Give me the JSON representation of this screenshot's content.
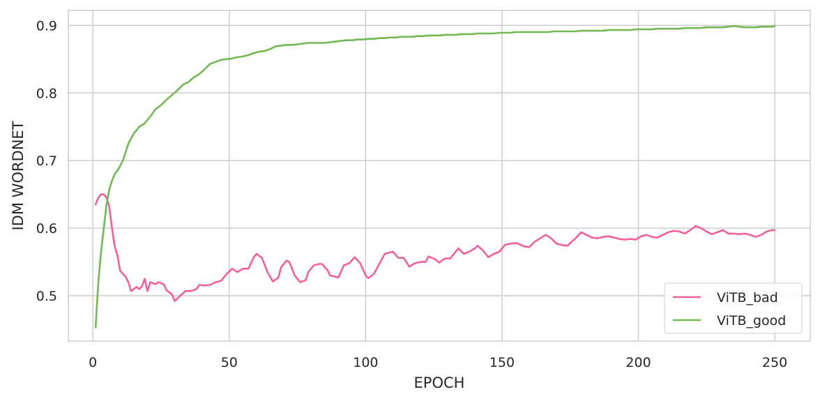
{
  "chart_data": {
    "type": "line",
    "title": "",
    "xlabel": "EPOCH",
    "ylabel": "IDM WORDNET",
    "xlim": [
      -9,
      263
    ],
    "ylim": [
      0.433,
      0.922
    ],
    "xticks": [
      0,
      50,
      100,
      150,
      200,
      250
    ],
    "yticks": [
      0.5,
      0.6,
      0.7,
      0.8,
      0.9
    ],
    "xtick_labels": [
      "0",
      "50",
      "100",
      "150",
      "200",
      "250"
    ],
    "ytick_labels": [
      "0.5",
      "0.6",
      "0.7",
      "0.8",
      "0.9"
    ],
    "grid": true,
    "legend_position": "bottom-right",
    "series": [
      {
        "name": "ViTB_bad",
        "color": "#f0609a",
        "points": [
          [
            1,
            0.635
          ],
          [
            2,
            0.645
          ],
          [
            3,
            0.65
          ],
          [
            4,
            0.65
          ],
          [
            5,
            0.645
          ],
          [
            6,
            0.632
          ],
          [
            7,
            0.6
          ],
          [
            8,
            0.573
          ],
          [
            9,
            0.56
          ],
          [
            10,
            0.537
          ],
          [
            12,
            0.528
          ],
          [
            13,
            0.52
          ],
          [
            14,
            0.507
          ],
          [
            16,
            0.513
          ],
          [
            17,
            0.51
          ],
          [
            18,
            0.514
          ],
          [
            19,
            0.525
          ],
          [
            20,
            0.507
          ],
          [
            21,
            0.52
          ],
          [
            23,
            0.517
          ],
          [
            24,
            0.52
          ],
          [
            26,
            0.517
          ],
          [
            27,
            0.508
          ],
          [
            29,
            0.502
          ],
          [
            30,
            0.492
          ],
          [
            32,
            0.5
          ],
          [
            34,
            0.507
          ],
          [
            36,
            0.507
          ],
          [
            38,
            0.51
          ],
          [
            39,
            0.516
          ],
          [
            41,
            0.515
          ],
          [
            43,
            0.516
          ],
          [
            45,
            0.52
          ],
          [
            47,
            0.522
          ],
          [
            49,
            0.532
          ],
          [
            51,
            0.54
          ],
          [
            53,
            0.535
          ],
          [
            55,
            0.54
          ],
          [
            57,
            0.54
          ],
          [
            59,
            0.557
          ],
          [
            60,
            0.562
          ],
          [
            62,
            0.556
          ],
          [
            64,
            0.535
          ],
          [
            66,
            0.521
          ],
          [
            68,
            0.527
          ],
          [
            69,
            0.542
          ],
          [
            71,
            0.552
          ],
          [
            72,
            0.55
          ],
          [
            74,
            0.53
          ],
          [
            76,
            0.52
          ],
          [
            78,
            0.523
          ],
          [
            79,
            0.535
          ],
          [
            81,
            0.545
          ],
          [
            83,
            0.547
          ],
          [
            84,
            0.547
          ],
          [
            86,
            0.538
          ],
          [
            87,
            0.53
          ],
          [
            89,
            0.528
          ],
          [
            90,
            0.527
          ],
          [
            92,
            0.545
          ],
          [
            94,
            0.548
          ],
          [
            96,
            0.557
          ],
          [
            98,
            0.548
          ],
          [
            100,
            0.53
          ],
          [
            101,
            0.526
          ],
          [
            103,
            0.532
          ],
          [
            105,
            0.547
          ],
          [
            107,
            0.562
          ],
          [
            108,
            0.563
          ],
          [
            110,
            0.565
          ],
          [
            112,
            0.556
          ],
          [
            114,
            0.556
          ],
          [
            116,
            0.543
          ],
          [
            118,
            0.548
          ],
          [
            120,
            0.55
          ],
          [
            122,
            0.55
          ],
          [
            123,
            0.558
          ],
          [
            125,
            0.555
          ],
          [
            127,
            0.549
          ],
          [
            129,
            0.555
          ],
          [
            131,
            0.555
          ],
          [
            133,
            0.565
          ],
          [
            134,
            0.57
          ],
          [
            136,
            0.562
          ],
          [
            138,
            0.565
          ],
          [
            140,
            0.57
          ],
          [
            141,
            0.574
          ],
          [
            143,
            0.567
          ],
          [
            145,
            0.557
          ],
          [
            147,
            0.562
          ],
          [
            149,
            0.565
          ],
          [
            151,
            0.575
          ],
          [
            153,
            0.577
          ],
          [
            155,
            0.578
          ],
          [
            156,
            0.577
          ],
          [
            158,
            0.573
          ],
          [
            160,
            0.572
          ],
          [
            162,
            0.58
          ],
          [
            164,
            0.585
          ],
          [
            166,
            0.59
          ],
          [
            168,
            0.585
          ],
          [
            170,
            0.577
          ],
          [
            172,
            0.575
          ],
          [
            174,
            0.574
          ],
          [
            175,
            0.578
          ],
          [
            177,
            0.585
          ],
          [
            179,
            0.594
          ],
          [
            181,
            0.59
          ],
          [
            183,
            0.586
          ],
          [
            185,
            0.585
          ],
          [
            187,
            0.587
          ],
          [
            189,
            0.588
          ],
          [
            191,
            0.586
          ],
          [
            193,
            0.584
          ],
          [
            195,
            0.583
          ],
          [
            197,
            0.584
          ],
          [
            199,
            0.583
          ],
          [
            201,
            0.588
          ],
          [
            203,
            0.59
          ],
          [
            205,
            0.587
          ],
          [
            207,
            0.586
          ],
          [
            209,
            0.59
          ],
          [
            211,
            0.594
          ],
          [
            213,
            0.596
          ],
          [
            215,
            0.595
          ],
          [
            217,
            0.592
          ],
          [
            219,
            0.597
          ],
          [
            221,
            0.603
          ],
          [
            223,
            0.6
          ],
          [
            225,
            0.595
          ],
          [
            227,
            0.591
          ],
          [
            229,
            0.594
          ],
          [
            231,
            0.597
          ],
          [
            233,
            0.592
          ],
          [
            235,
            0.592
          ],
          [
            237,
            0.591
          ],
          [
            239,
            0.592
          ],
          [
            241,
            0.59
          ],
          [
            243,
            0.587
          ],
          [
            245,
            0.59
          ],
          [
            247,
            0.595
          ],
          [
            249,
            0.597
          ],
          [
            250,
            0.597
          ]
        ]
      },
      {
        "name": "ViTB_good",
        "color": "#72b855",
        "points": [
          [
            1,
            0.453
          ],
          [
            2,
            0.52
          ],
          [
            3,
            0.565
          ],
          [
            4,
            0.6
          ],
          [
            5,
            0.635
          ],
          [
            6,
            0.657
          ],
          [
            7,
            0.67
          ],
          [
            8,
            0.68
          ],
          [
            9,
            0.685
          ],
          [
            10,
            0.692
          ],
          [
            11,
            0.7
          ],
          [
            12,
            0.712
          ],
          [
            13,
            0.725
          ],
          [
            15,
            0.74
          ],
          [
            17,
            0.75
          ],
          [
            19,
            0.755
          ],
          [
            21,
            0.765
          ],
          [
            23,
            0.776
          ],
          [
            25,
            0.782
          ],
          [
            27,
            0.79
          ],
          [
            29,
            0.797
          ],
          [
            31,
            0.804
          ],
          [
            33,
            0.812
          ],
          [
            35,
            0.816
          ],
          [
            37,
            0.823
          ],
          [
            39,
            0.828
          ],
          [
            41,
            0.835
          ],
          [
            43,
            0.843
          ],
          [
            45,
            0.846
          ],
          [
            47,
            0.849
          ],
          [
            49,
            0.85
          ],
          [
            51,
            0.851
          ],
          [
            53,
            0.853
          ],
          [
            55,
            0.854
          ],
          [
            57,
            0.856
          ],
          [
            59,
            0.859
          ],
          [
            61,
            0.861
          ],
          [
            63,
            0.862
          ],
          [
            65,
            0.865
          ],
          [
            67,
            0.869
          ],
          [
            69,
            0.87
          ],
          [
            71,
            0.871
          ],
          [
            73,
            0.871
          ],
          [
            75,
            0.872
          ],
          [
            77,
            0.873
          ],
          [
            79,
            0.874
          ],
          [
            81,
            0.874
          ],
          [
            83,
            0.874
          ],
          [
            85,
            0.874
          ],
          [
            87,
            0.875
          ],
          [
            89,
            0.876
          ],
          [
            91,
            0.877
          ],
          [
            93,
            0.878
          ],
          [
            95,
            0.878
          ],
          [
            97,
            0.879
          ],
          [
            99,
            0.879
          ],
          [
            101,
            0.88
          ],
          [
            103,
            0.88
          ],
          [
            105,
            0.881
          ],
          [
            107,
            0.881
          ],
          [
            109,
            0.882
          ],
          [
            111,
            0.882
          ],
          [
            113,
            0.883
          ],
          [
            115,
            0.883
          ],
          [
            117,
            0.883
          ],
          [
            119,
            0.884
          ],
          [
            121,
            0.884
          ],
          [
            123,
            0.885
          ],
          [
            125,
            0.885
          ],
          [
            127,
            0.885
          ],
          [
            129,
            0.886
          ],
          [
            131,
            0.886
          ],
          [
            133,
            0.886
          ],
          [
            135,
            0.887
          ],
          [
            137,
            0.887
          ],
          [
            139,
            0.887
          ],
          [
            141,
            0.888
          ],
          [
            143,
            0.888
          ],
          [
            145,
            0.888
          ],
          [
            147,
            0.888
          ],
          [
            149,
            0.889
          ],
          [
            151,
            0.889
          ],
          [
            153,
            0.889
          ],
          [
            155,
            0.89
          ],
          [
            157,
            0.89
          ],
          [
            159,
            0.89
          ],
          [
            161,
            0.89
          ],
          [
            163,
            0.89
          ],
          [
            165,
            0.89
          ],
          [
            167,
            0.89
          ],
          [
            169,
            0.891
          ],
          [
            171,
            0.891
          ],
          [
            173,
            0.891
          ],
          [
            175,
            0.891
          ],
          [
            177,
            0.891
          ],
          [
            179,
            0.892
          ],
          [
            181,
            0.892
          ],
          [
            183,
            0.892
          ],
          [
            185,
            0.892
          ],
          [
            187,
            0.892
          ],
          [
            189,
            0.893
          ],
          [
            191,
            0.893
          ],
          [
            193,
            0.893
          ],
          [
            195,
            0.893
          ],
          [
            197,
            0.893
          ],
          [
            199,
            0.894
          ],
          [
            201,
            0.894
          ],
          [
            203,
            0.894
          ],
          [
            205,
            0.894
          ],
          [
            207,
            0.895
          ],
          [
            209,
            0.895
          ],
          [
            211,
            0.895
          ],
          [
            213,
            0.895
          ],
          [
            215,
            0.895
          ],
          [
            217,
            0.896
          ],
          [
            219,
            0.896
          ],
          [
            221,
            0.896
          ],
          [
            223,
            0.896
          ],
          [
            225,
            0.897
          ],
          [
            227,
            0.897
          ],
          [
            229,
            0.897
          ],
          [
            231,
            0.897
          ],
          [
            233,
            0.898
          ],
          [
            235,
            0.899
          ],
          [
            237,
            0.898
          ],
          [
            239,
            0.897
          ],
          [
            241,
            0.897
          ],
          [
            243,
            0.897
          ],
          [
            245,
            0.898
          ],
          [
            247,
            0.898
          ],
          [
            249,
            0.898
          ],
          [
            250,
            0.899
          ]
        ]
      }
    ]
  }
}
